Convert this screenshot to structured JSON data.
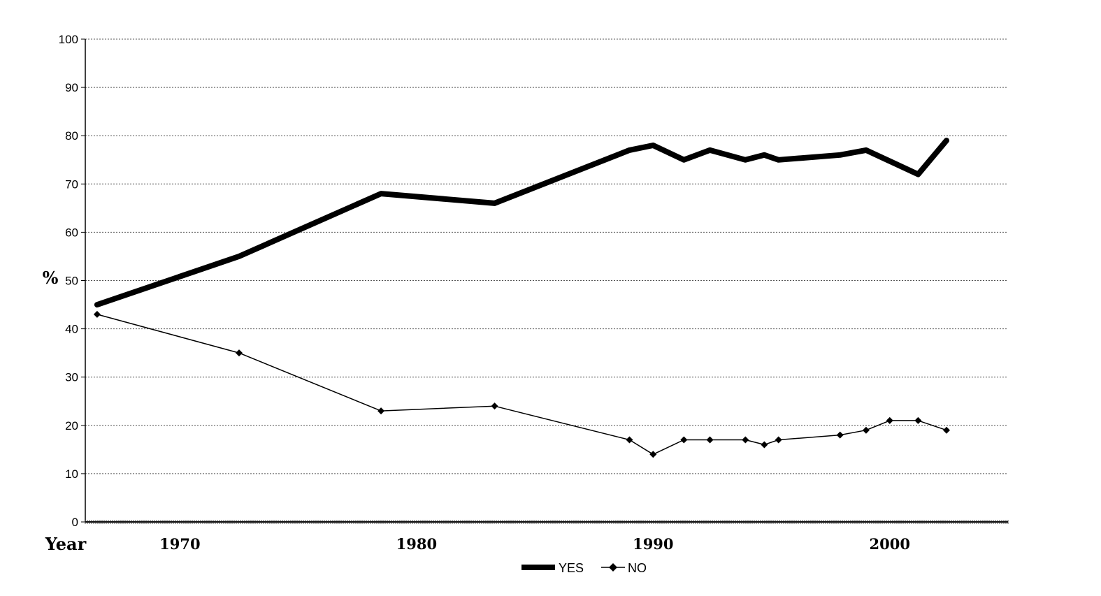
{
  "chart_data": {
    "type": "line",
    "title": "",
    "xlabel": "Year",
    "ylabel": "%",
    "ylim": [
      0,
      100
    ],
    "yticks": [
      0,
      10,
      20,
      30,
      40,
      50,
      60,
      70,
      80,
      90,
      100
    ],
    "xticks": [
      1970,
      1980,
      1990,
      2000
    ],
    "xlim": [
      1966,
      2005
    ],
    "grid": true,
    "legend_position": "bottom",
    "series": [
      {
        "name": "YES",
        "style": "thick",
        "color": "#000000",
        "x": [
          1966.5,
          1972.5,
          1978.5,
          1983.3,
          1989.0,
          1990.0,
          1991.3,
          1992.4,
          1993.9,
          1994.7,
          1995.3,
          1997.9,
          1999.0,
          2001.2,
          2002.4
        ],
        "values": [
          45,
          55,
          68,
          66,
          77,
          78,
          75,
          77,
          75,
          76,
          75,
          76,
          77,
          72,
          79
        ]
      },
      {
        "name": "NO",
        "style": "thin-diamond",
        "color": "#000000",
        "x": [
          1966.5,
          1972.5,
          1978.5,
          1983.3,
          1989.0,
          1990.0,
          1991.3,
          1992.4,
          1993.9,
          1994.7,
          1995.3,
          1997.9,
          1999.0,
          2000.0,
          2001.2,
          2002.4
        ],
        "values": [
          43,
          35,
          23,
          24,
          17,
          14,
          17,
          17,
          17,
          16,
          17,
          18,
          19,
          21,
          21,
          19
        ]
      }
    ]
  }
}
